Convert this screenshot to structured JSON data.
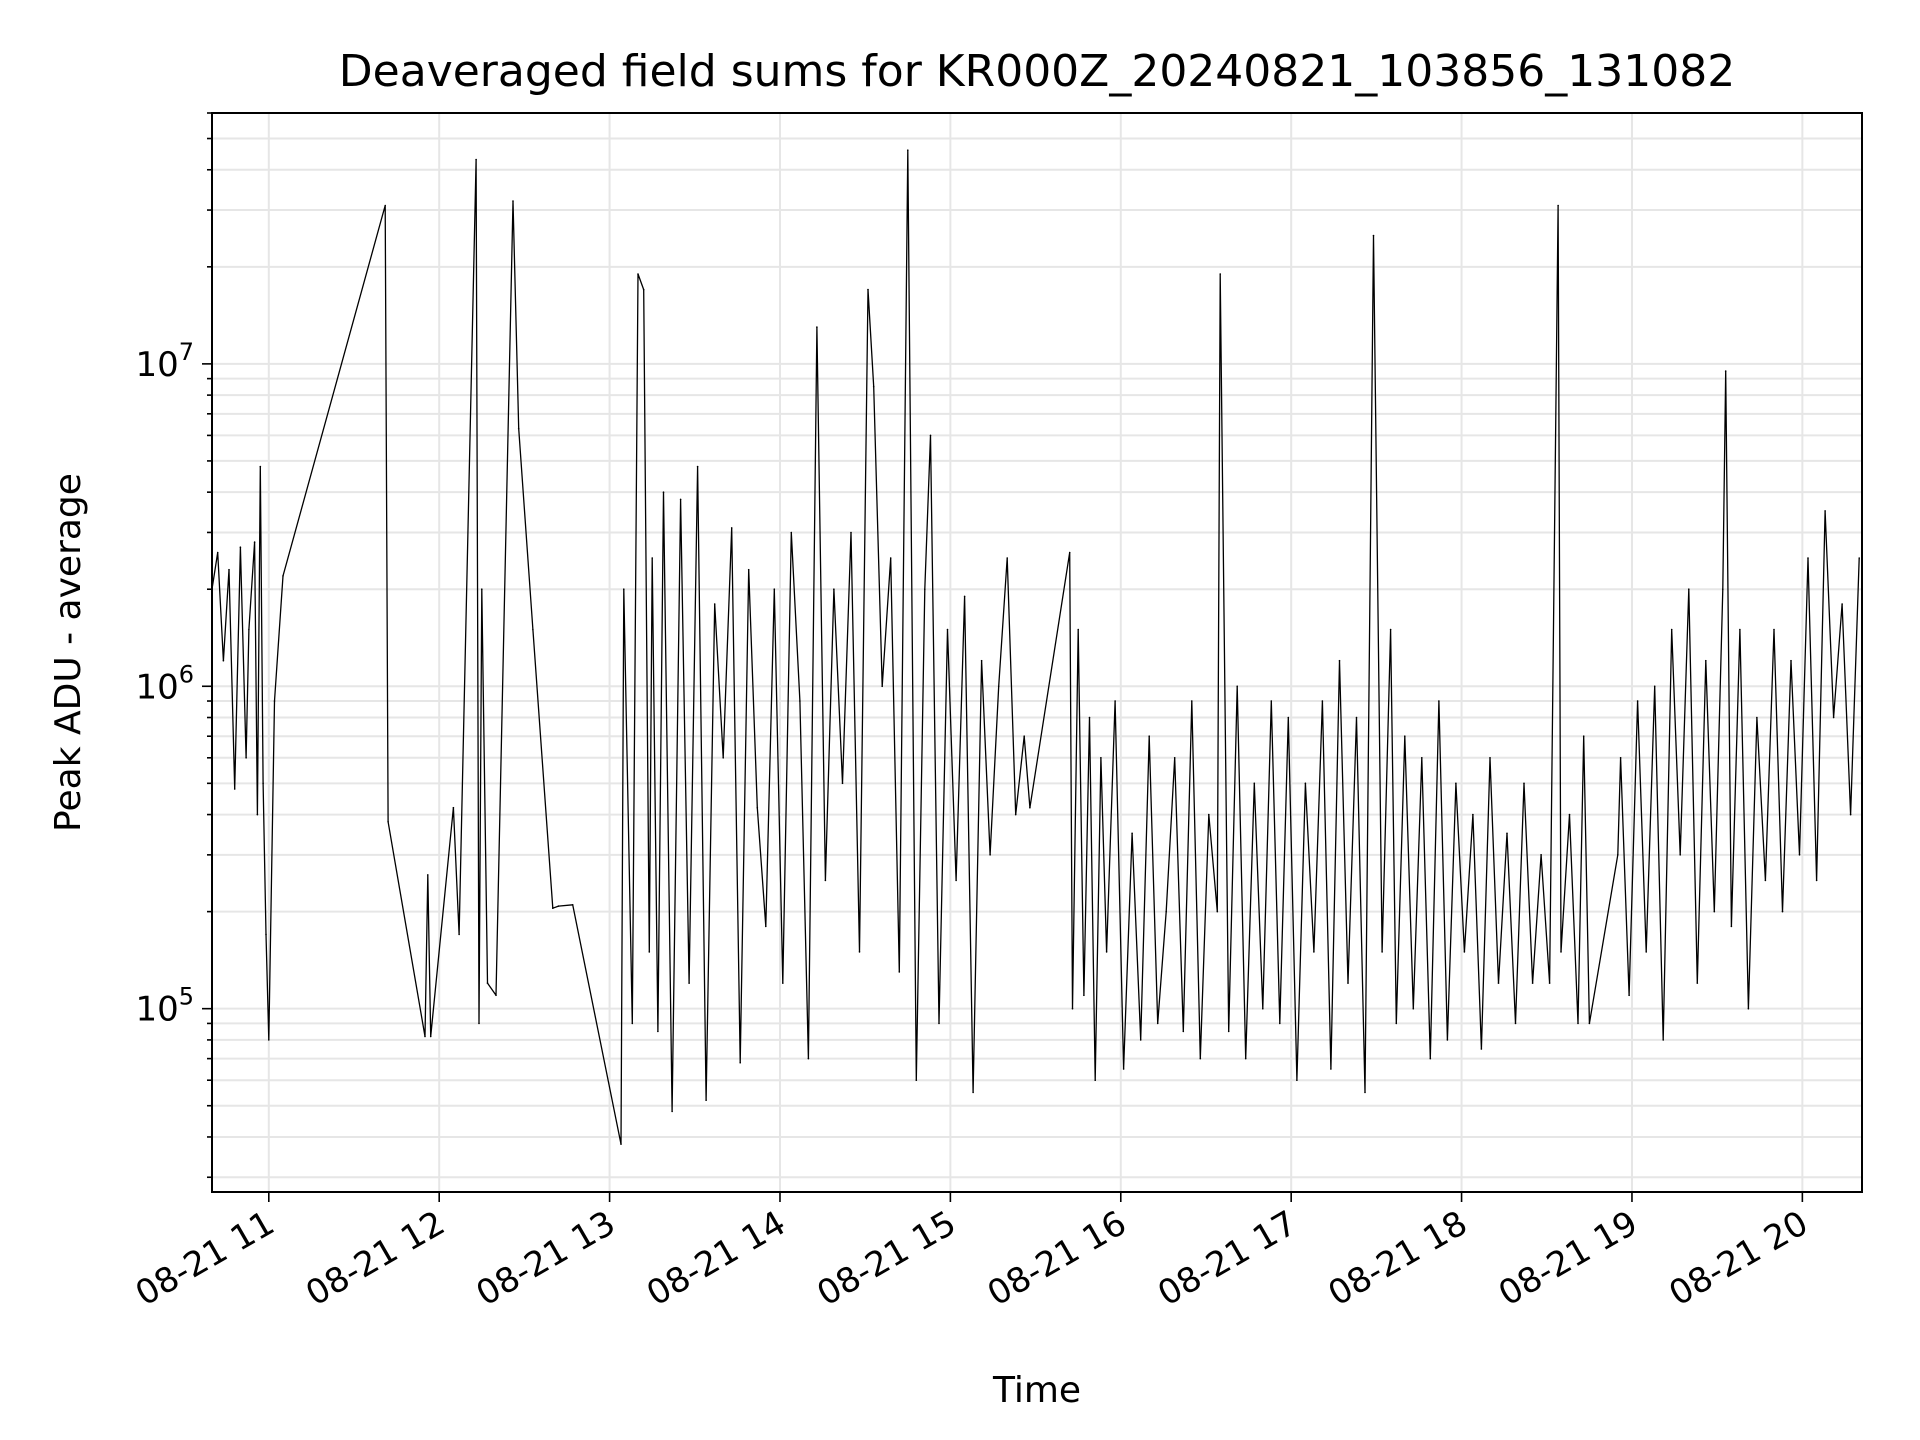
{
  "chart_data": {
    "type": "line",
    "title": "Deaveraged field sums for KR000Z_20240821_103856_131082",
    "xlabel": "Time",
    "ylabel": "Peak ADU - average",
    "yscale": "log",
    "ylim": [
      27000,
      60000000
    ],
    "xlim": [
      "2024-08-21 10:40",
      "2024-08-21 20:21"
    ],
    "grid": true,
    "grid_minor": true,
    "legend": "none",
    "line_color": "#000000",
    "x_ticks": [
      {
        "value": "2024-08-21 11:00",
        "label": "08-21 11"
      },
      {
        "value": "2024-08-21 12:00",
        "label": "08-21 12"
      },
      {
        "value": "2024-08-21 13:00",
        "label": "08-21 13"
      },
      {
        "value": "2024-08-21 14:00",
        "label": "08-21 14"
      },
      {
        "value": "2024-08-21 15:00",
        "label": "08-21 15"
      },
      {
        "value": "2024-08-21 16:00",
        "label": "08-21 16"
      },
      {
        "value": "2024-08-21 17:00",
        "label": "08-21 17"
      },
      {
        "value": "2024-08-21 18:00",
        "label": "08-21 18"
      },
      {
        "value": "2024-08-21 19:00",
        "label": "08-21 19"
      },
      {
        "value": "2024-08-21 20:00",
        "label": "08-21 20"
      }
    ],
    "y_ticks": [
      {
        "value": 100000,
        "base": "10",
        "exp": "5"
      },
      {
        "value": 1000000,
        "base": "10",
        "exp": "6"
      },
      {
        "value": 10000000,
        "base": "10",
        "exp": "7"
      }
    ],
    "series": [
      {
        "x": [
          "2024-08-21 10:40",
          "2024-08-21 10:42",
          "2024-08-21 10:44",
          "2024-08-21 10:46",
          "2024-08-21 10:48",
          "2024-08-21 10:50",
          "2024-08-21 10:52",
          "2024-08-21 10:53",
          "2024-08-21 10:55",
          "2024-08-21 10:56",
          "2024-08-21 10:57",
          "2024-08-21 10:58",
          "2024-08-21 10:59",
          "2024-08-21 11:00",
          "2024-08-21 11:02",
          "2024-08-21 11:05",
          "2024-08-21 11:41",
          "2024-08-21 11:42",
          "2024-08-21 11:55",
          "2024-08-21 11:56",
          "2024-08-21 11:57",
          "2024-08-21 12:05",
          "2024-08-21 12:07",
          "2024-08-21 12:13",
          "2024-08-21 12:14",
          "2024-08-21 12:15",
          "2024-08-21 12:17",
          "2024-08-21 12:20",
          "2024-08-21 12:26",
          "2024-08-21 12:28",
          "2024-08-21 12:33",
          "2024-08-21 12:40",
          "2024-08-21 12:42",
          "2024-08-21 12:47",
          "2024-08-21 13:04",
          "2024-08-21 13:05",
          "2024-08-21 13:08",
          "2024-08-21 13:10",
          "2024-08-21 13:12",
          "2024-08-21 13:14",
          "2024-08-21 13:15",
          "2024-08-21 13:17",
          "2024-08-21 13:19",
          "2024-08-21 13:22",
          "2024-08-21 13:25",
          "2024-08-21 13:28",
          "2024-08-21 13:31",
          "2024-08-21 13:34",
          "2024-08-21 13:37",
          "2024-08-21 13:40",
          "2024-08-21 13:43",
          "2024-08-21 13:46",
          "2024-08-21 13:49",
          "2024-08-21 13:52",
          "2024-08-21 13:55",
          "2024-08-21 13:58",
          "2024-08-21 14:01",
          "2024-08-21 14:04",
          "2024-08-21 14:07",
          "2024-08-21 14:10",
          "2024-08-21 14:13",
          "2024-08-21 14:16",
          "2024-08-21 14:19",
          "2024-08-21 14:22",
          "2024-08-21 14:25",
          "2024-08-21 14:28",
          "2024-08-21 14:31",
          "2024-08-21 14:33",
          "2024-08-21 14:36",
          "2024-08-21 14:39",
          "2024-08-21 14:42",
          "2024-08-21 14:45",
          "2024-08-21 14:48",
          "2024-08-21 14:51",
          "2024-08-21 14:53",
          "2024-08-21 14:56",
          "2024-08-21 14:59",
          "2024-08-21 15:02",
          "2024-08-21 15:05",
          "2024-08-21 15:08",
          "2024-08-21 15:11",
          "2024-08-21 15:14",
          "2024-08-21 15:17",
          "2024-08-21 15:20",
          "2024-08-21 15:23",
          "2024-08-21 15:26",
          "2024-08-21 15:28",
          "2024-08-21 15:42",
          "2024-08-21 15:43",
          "2024-08-21 15:45",
          "2024-08-21 15:47",
          "2024-08-21 15:49",
          "2024-08-21 15:51",
          "2024-08-21 15:53",
          "2024-08-21 15:55",
          "2024-08-21 15:58",
          "2024-08-21 16:01",
          "2024-08-21 16:04",
          "2024-08-21 16:07",
          "2024-08-21 16:10",
          "2024-08-21 16:13",
          "2024-08-21 16:16",
          "2024-08-21 16:19",
          "2024-08-21 16:22",
          "2024-08-21 16:25",
          "2024-08-21 16:28",
          "2024-08-21 16:31",
          "2024-08-21 16:34",
          "2024-08-21 16:35",
          "2024-08-21 16:38",
          "2024-08-21 16:41",
          "2024-08-21 16:44",
          "2024-08-21 16:47",
          "2024-08-21 16:50",
          "2024-08-21 16:53",
          "2024-08-21 16:56",
          "2024-08-21 16:59",
          "2024-08-21 17:02",
          "2024-08-21 17:05",
          "2024-08-21 17:08",
          "2024-08-21 17:11",
          "2024-08-21 17:14",
          "2024-08-21 17:17",
          "2024-08-21 17:20",
          "2024-08-21 17:23",
          "2024-08-21 17:26",
          "2024-08-21 17:29",
          "2024-08-21 17:32",
          "2024-08-21 17:35",
          "2024-08-21 17:37",
          "2024-08-21 17:40",
          "2024-08-21 17:43",
          "2024-08-21 17:46",
          "2024-08-21 17:49",
          "2024-08-21 17:52",
          "2024-08-21 17:55",
          "2024-08-21 17:58",
          "2024-08-21 18:01",
          "2024-08-21 18:04",
          "2024-08-21 18:07",
          "2024-08-21 18:10",
          "2024-08-21 18:13",
          "2024-08-21 18:16",
          "2024-08-21 18:19",
          "2024-08-21 18:22",
          "2024-08-21 18:25",
          "2024-08-21 18:28",
          "2024-08-21 18:31",
          "2024-08-21 18:34",
          "2024-08-21 18:35",
          "2024-08-21 18:38",
          "2024-08-21 18:41",
          "2024-08-21 18:43",
          "2024-08-21 18:45",
          "2024-08-21 18:55",
          "2024-08-21 18:56",
          "2024-08-21 18:59",
          "2024-08-21 19:02",
          "2024-08-21 19:05",
          "2024-08-21 19:08",
          "2024-08-21 19:11",
          "2024-08-21 19:14",
          "2024-08-21 19:17",
          "2024-08-21 19:20",
          "2024-08-21 19:23",
          "2024-08-21 19:26",
          "2024-08-21 19:29",
          "2024-08-21 19:32",
          "2024-08-21 19:33",
          "2024-08-21 19:35",
          "2024-08-21 19:38",
          "2024-08-21 19:41",
          "2024-08-21 19:44",
          "2024-08-21 19:47",
          "2024-08-21 19:50",
          "2024-08-21 19:53",
          "2024-08-21 19:56",
          "2024-08-21 19:59",
          "2024-08-21 20:02",
          "2024-08-21 20:05",
          "2024-08-21 20:08",
          "2024-08-21 20:11",
          "2024-08-21 20:14",
          "2024-08-21 20:17",
          "2024-08-21 20:20"
        ],
        "y": [
          2000000,
          2600000,
          1200000,
          2300000,
          480000,
          2700000,
          600000,
          1500000,
          2800000,
          400000,
          4800000,
          500000,
          170000,
          80000,
          900000,
          2200000,
          31000000,
          380000,
          82000,
          260000,
          82000,
          420000,
          170000,
          43000000,
          90000,
          2000000,
          120000,
          110000,
          32000000,
          6300000,
          1500000,
          205000,
          208000,
          210000,
          38000,
          2000000,
          90000,
          19000000,
          17000000,
          150000,
          2500000,
          85000,
          4000000,
          48000,
          3800000,
          120000,
          4800000,
          52000,
          1800000,
          600000,
          3100000,
          68000,
          2300000,
          420000,
          180000,
          2000000,
          120000,
          3000000,
          900000,
          70000,
          13000000,
          250000,
          2000000,
          500000,
          3000000,
          150000,
          17000000,
          8500000,
          1000000,
          2500000,
          130000,
          46000000,
          60000,
          2000000,
          6000000,
          90000,
          1500000,
          250000,
          1900000,
          55000,
          1200000,
          300000,
          1000000,
          2500000,
          400000,
          700000,
          420000,
          2600000,
          100000,
          1500000,
          110000,
          800000,
          60000,
          600000,
          150000,
          900000,
          65000,
          350000,
          80000,
          700000,
          90000,
          200000,
          600000,
          85000,
          900000,
          70000,
          400000,
          200000,
          19000000,
          85000,
          1000000,
          70000,
          500000,
          100000,
          900000,
          90000,
          800000,
          60000,
          500000,
          150000,
          900000,
          65000,
          1200000,
          120000,
          800000,
          55000,
          25000000,
          150000,
          1500000,
          90000,
          700000,
          100000,
          600000,
          70000,
          900000,
          80000,
          500000,
          150000,
          400000,
          75000,
          600000,
          120000,
          350000,
          90000,
          500000,
          120000,
          300000,
          120000,
          31000000,
          150000,
          400000,
          90000,
          700000,
          90000,
          300000,
          600000,
          110000,
          900000,
          150000,
          1000000,
          80000,
          1500000,
          300000,
          2000000,
          120000,
          1200000,
          200000,
          2000000,
          9500000,
          180000,
          1500000,
          100000,
          800000,
          250000,
          1500000,
          200000,
          1200000,
          300000,
          2500000,
          250000,
          3500000,
          800000,
          1800000,
          400000,
          2500000
        ]
      }
    ]
  }
}
